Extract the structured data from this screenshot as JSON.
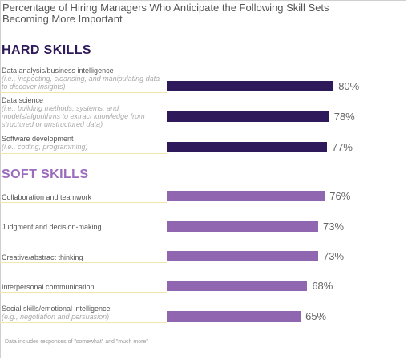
{
  "chart_data": {
    "type": "bar",
    "orientation": "horizontal",
    "title": "Percentage of Hiring Managers Who Anticipate the Following Skill Sets Becoming More Important",
    "xlim": [
      0,
      100
    ],
    "groups": [
      {
        "heading": "HARD SKILLS",
        "color": "#2e1a5a",
        "items": [
          {
            "label": "Data analysis/business intelligence",
            "sublabel": "(i.e., inspecting, cleansing, and manipulating data to discover insights)",
            "value": 80,
            "value_label": "80%"
          },
          {
            "label": "Data science",
            "sublabel": "(i.e., building methods, systems, and models/algorithms to extract knowledge from structured or unstructured data)",
            "value": 78,
            "value_label": "78%"
          },
          {
            "label": "Software development",
            "sublabel": "(i.e., coding, programming)",
            "value": 77,
            "value_label": "77%"
          }
        ]
      },
      {
        "heading": "SOFT SKILLS",
        "color": "#9066b0",
        "items": [
          {
            "label": "Collaboration and teamwork",
            "sublabel": "",
            "value": 76,
            "value_label": "76%"
          },
          {
            "label": "Judgment and decision-making",
            "sublabel": "",
            "value": 73,
            "value_label": "73%"
          },
          {
            "label": "Creative/abstract thinking",
            "sublabel": "",
            "value": 73,
            "value_label": "73%"
          },
          {
            "label": "Interpersonal communication",
            "sublabel": "",
            "value": 68,
            "value_label": "68%"
          },
          {
            "label": "Social skills/emotional intelligence",
            "sublabel": "(e.g., negotiation and persuasion)",
            "value": 65,
            "value_label": "65%"
          }
        ]
      }
    ],
    "footnote": "Data includes responses of \"somewhat\" and \"much more\""
  }
}
